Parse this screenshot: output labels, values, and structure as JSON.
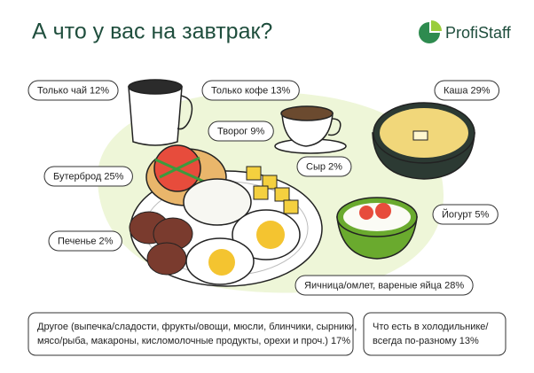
{
  "title": "А что у вас на завтрак?",
  "logo": "ProfiStaff",
  "labels": [
    "Только чай 12%",
    "Только кофе 13%",
    "Каша 29%",
    "Творог 9%",
    "Сыр 2%",
    "Бутерброд 25%",
    "Йогурт 5%",
    "Печенье 2%",
    "Яичница/омлет, вареные яйца 28%"
  ],
  "notes": [
    {
      "lines": [
        "Другое (выпечка/сладости, фрукты/овощи, мюсли, блинчики, сырники,",
        "мясо/рыба, макароны, кисломолочные продукты, орехи и проч.) 17%"
      ]
    },
    {
      "lines": [
        "Что есть в холодильнике/",
        "всегда по-разному 13%"
      ]
    }
  ]
}
